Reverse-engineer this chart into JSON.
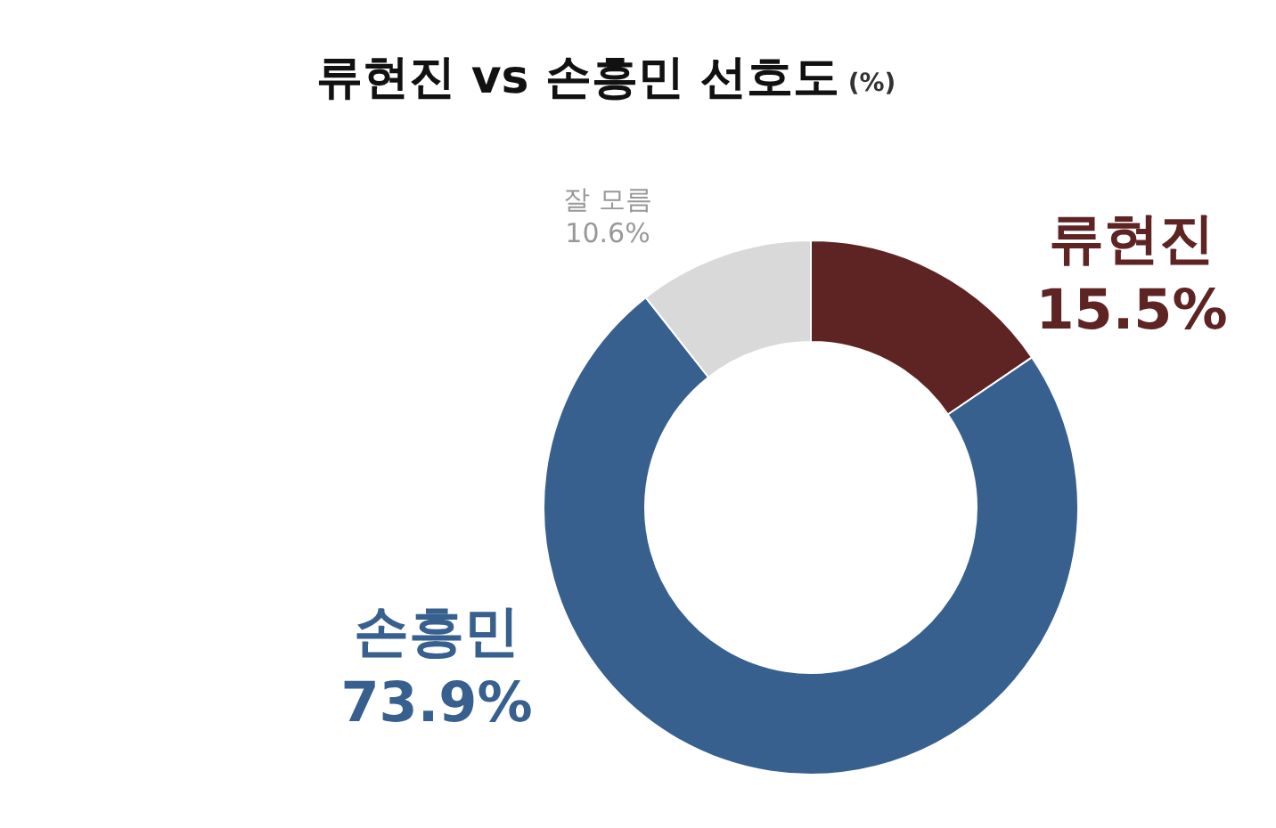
{
  "chart_data": {
    "type": "donut",
    "title": "류현진 vs 손흥민 선호도",
    "subtitle": "(%)",
    "categories": [
      "류현진",
      "손흥민",
      "잘 모름"
    ],
    "values": [
      15.5,
      73.9,
      10.6
    ],
    "colors": [
      "#5e2424",
      "#38608e",
      "#d9d9d9"
    ],
    "value_labels": [
      "15.5%",
      "73.9%",
      "10.6%"
    ],
    "legend": false
  }
}
